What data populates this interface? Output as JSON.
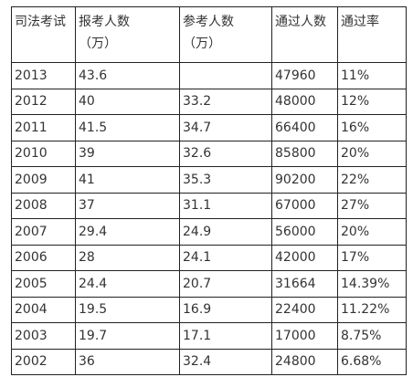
{
  "table": {
    "header": [
      [
        "司法考试"
      ],
      [
        "报考人数",
        "（万）"
      ],
      [
        "参考人数",
        "（万）"
      ],
      [
        "通过人数"
      ],
      [
        "通过率"
      ]
    ],
    "rows": [
      [
        "2013",
        "43.6",
        null,
        "47960",
        "11%"
      ],
      [
        "2012",
        "40",
        "33.2",
        "48000",
        "12%"
      ],
      [
        "2011",
        "41.5",
        "34.7",
        "66400",
        "16%"
      ],
      [
        "2010",
        "39",
        "32.6",
        "85800",
        "20%"
      ],
      [
        "2009",
        "41",
        "35.3",
        "90200",
        "22%"
      ],
      [
        "2008",
        "37",
        "31.1",
        "67000",
        "27%"
      ],
      [
        "2007",
        "29.4",
        "24.9",
        "56000",
        "20%"
      ],
      [
        "2006",
        "28",
        "24.1",
        "42000",
        "17%"
      ],
      [
        "2005",
        "24.4",
        "20.7",
        "31664",
        "14.39%"
      ],
      [
        "2004",
        "19.5",
        "16.9",
        "22400",
        "11.22%"
      ],
      [
        "2003",
        "19.7",
        "17.1",
        "17000",
        "8.75%"
      ],
      [
        "2002",
        "36",
        "32.4",
        "24800",
        "6.68%"
      ]
    ]
  }
}
